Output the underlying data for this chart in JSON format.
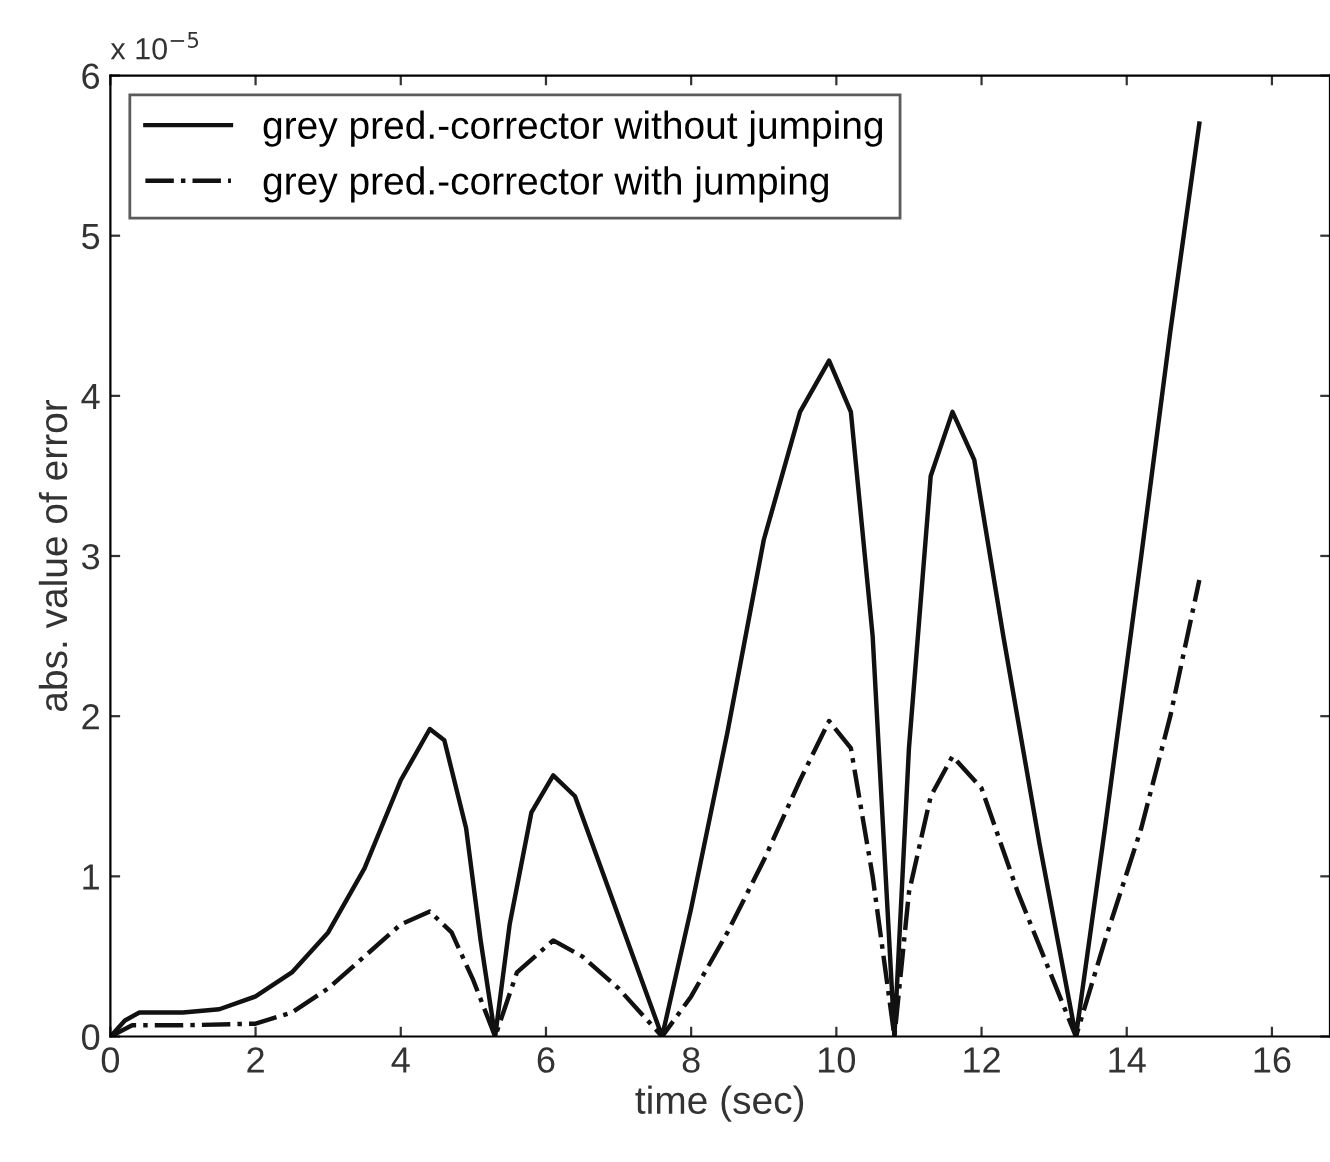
{
  "chart_data": {
    "type": "line",
    "xlabel": "time (sec)",
    "ylabel": "abs. value of error",
    "annotations": [
      "x 10$^{−5}$"
    ],
    "xlim": [
      0,
      16.8
    ],
    "xticks": [
      0,
      2,
      4,
      6,
      8,
      10,
      12,
      14,
      16
    ],
    "ylim": [
      0,
      6
    ],
    "yticks": [
      0,
      1,
      2,
      3,
      4,
      5,
      6
    ],
    "grid": false,
    "legend": "top left",
    "series": [
      {
        "name": "grey pred.-corrector without jumping",
        "color": "#111111",
        "line_style": "solid",
        "x": [
          0,
          0.2,
          0.4,
          1,
          1.5,
          2,
          2.5,
          3,
          3.5,
          4,
          4.4,
          4.6,
          4.9,
          5.1,
          5.3,
          5.5,
          5.8,
          6.1,
          6.4,
          6.8,
          7.2,
          7.6,
          8.0,
          8.5,
          9.0,
          9.5,
          9.9,
          10.2,
          10.5,
          10.8,
          11.0,
          11.3,
          11.6,
          11.9,
          12.3,
          12.8,
          13.3,
          13.7,
          14.2,
          14.6,
          15.0
        ],
        "values": [
          0,
          0.1,
          0.15,
          0.15,
          0.17,
          0.25,
          0.4,
          0.65,
          1.05,
          1.6,
          1.92,
          1.85,
          1.3,
          0.6,
          0,
          0.7,
          1.4,
          1.63,
          1.5,
          1.0,
          0.5,
          0,
          0.8,
          1.9,
          3.1,
          3.9,
          4.22,
          3.9,
          2.5,
          0,
          1.8,
          3.5,
          3.9,
          3.6,
          2.5,
          1.2,
          0,
          1.3,
          3.0,
          4.4,
          5.7
        ]
      },
      {
        "name": "grey pred.-corrector with jumping",
        "color": "#111111",
        "line_style": "dashdot",
        "x": [
          0,
          0.3,
          1,
          2,
          2.5,
          3,
          3.5,
          4,
          4.4,
          4.7,
          5.0,
          5.3,
          5.6,
          6.1,
          6.5,
          7,
          7.6,
          8,
          8.5,
          9,
          9.5,
          9.9,
          10.2,
          10.5,
          10.8,
          11.0,
          11.3,
          11.6,
          12.0,
          12.5,
          13.3,
          13.7,
          14.2,
          14.6,
          15.0
        ],
        "values": [
          0,
          0.07,
          0.07,
          0.08,
          0.15,
          0.3,
          0.5,
          0.7,
          0.78,
          0.65,
          0.35,
          0,
          0.4,
          0.6,
          0.5,
          0.3,
          0,
          0.25,
          0.65,
          1.1,
          1.6,
          1.97,
          1.8,
          1.0,
          0,
          0.9,
          1.5,
          1.75,
          1.55,
          0.9,
          0,
          0.6,
          1.3,
          2.0,
          2.85
        ]
      }
    ]
  }
}
